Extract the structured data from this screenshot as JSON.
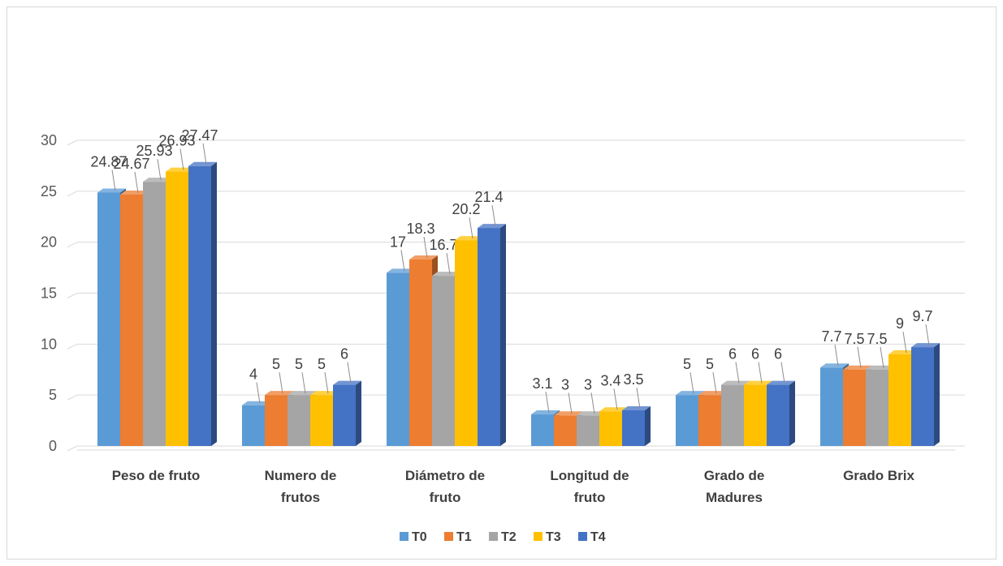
{
  "chart_data": {
    "type": "bar",
    "categories": [
      [
        "Peso de fruto"
      ],
      [
        "Numero de",
        "frutos"
      ],
      [
        "Diámetro de",
        "fruto"
      ],
      [
        "Longitud de",
        "fruto"
      ],
      [
        "Grado de",
        "Madures"
      ],
      [
        "Grado Brix"
      ]
    ],
    "series": [
      {
        "name": "T0",
        "values": [
          24.87,
          4,
          17,
          3.1,
          5,
          7.7
        ]
      },
      {
        "name": "T1",
        "values": [
          24.67,
          5,
          18.3,
          3,
          5,
          7.5
        ]
      },
      {
        "name": "T2",
        "values": [
          25.93,
          5,
          16.7,
          3,
          6,
          7.5
        ]
      },
      {
        "name": "T3",
        "values": [
          26.93,
          5,
          20.2,
          3.4,
          6,
          9
        ]
      },
      {
        "name": "T4",
        "values": [
          27.47,
          6,
          21.4,
          3.5,
          6,
          9.7
        ]
      }
    ],
    "ylim": [
      0,
      30
    ],
    "yticks": [
      0,
      5,
      10,
      15,
      20,
      25,
      30
    ],
    "grid": true,
    "legend_position": "bottom",
    "colors": {
      "T0": "#5B9BD5",
      "T1": "#ED7D31",
      "T2": "#A5A5A5",
      "T3": "#FFC000",
      "T4": "#4472C4"
    }
  }
}
